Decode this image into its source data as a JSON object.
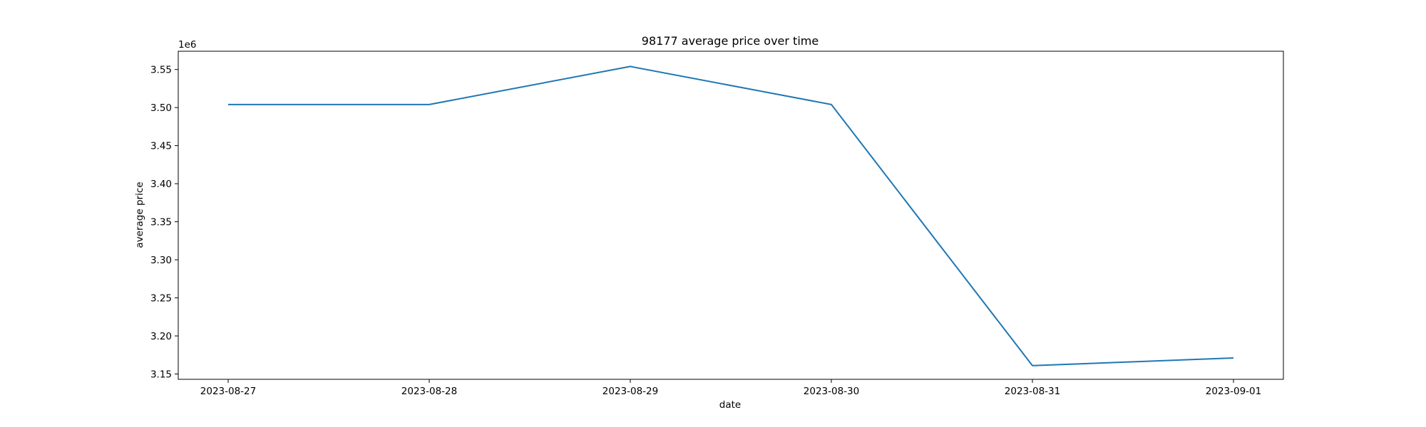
{
  "chart_data": {
    "type": "line",
    "title": "98177 average price over time",
    "xlabel": "date",
    "ylabel": "average price",
    "y_offset_label": "1e6",
    "x": [
      "2023-08-27",
      "2023-08-28",
      "2023-08-29",
      "2023-08-30",
      "2023-08-31",
      "2023-09-01"
    ],
    "x_tick_labels": [
      "2023-08-27",
      "2023-08-28",
      "2023-08-29",
      "2023-08-30",
      "2023-08-31",
      "2023-09-01"
    ],
    "series": [
      {
        "values": [
          3504000,
          3504000,
          3554000,
          3504000,
          3161000,
          3171000
        ],
        "color": "#1f77b4"
      }
    ],
    "ylim": [
      3143000,
      3574000
    ],
    "y_ticks": [
      3150000,
      3200000,
      3250000,
      3300000,
      3350000,
      3400000,
      3450000,
      3500000,
      3550000
    ],
    "y_tick_labels": [
      "3.15",
      "3.20",
      "3.25",
      "3.30",
      "3.35",
      "3.40",
      "3.45",
      "3.50",
      "3.55"
    ],
    "grid": false,
    "legend": "none"
  }
}
